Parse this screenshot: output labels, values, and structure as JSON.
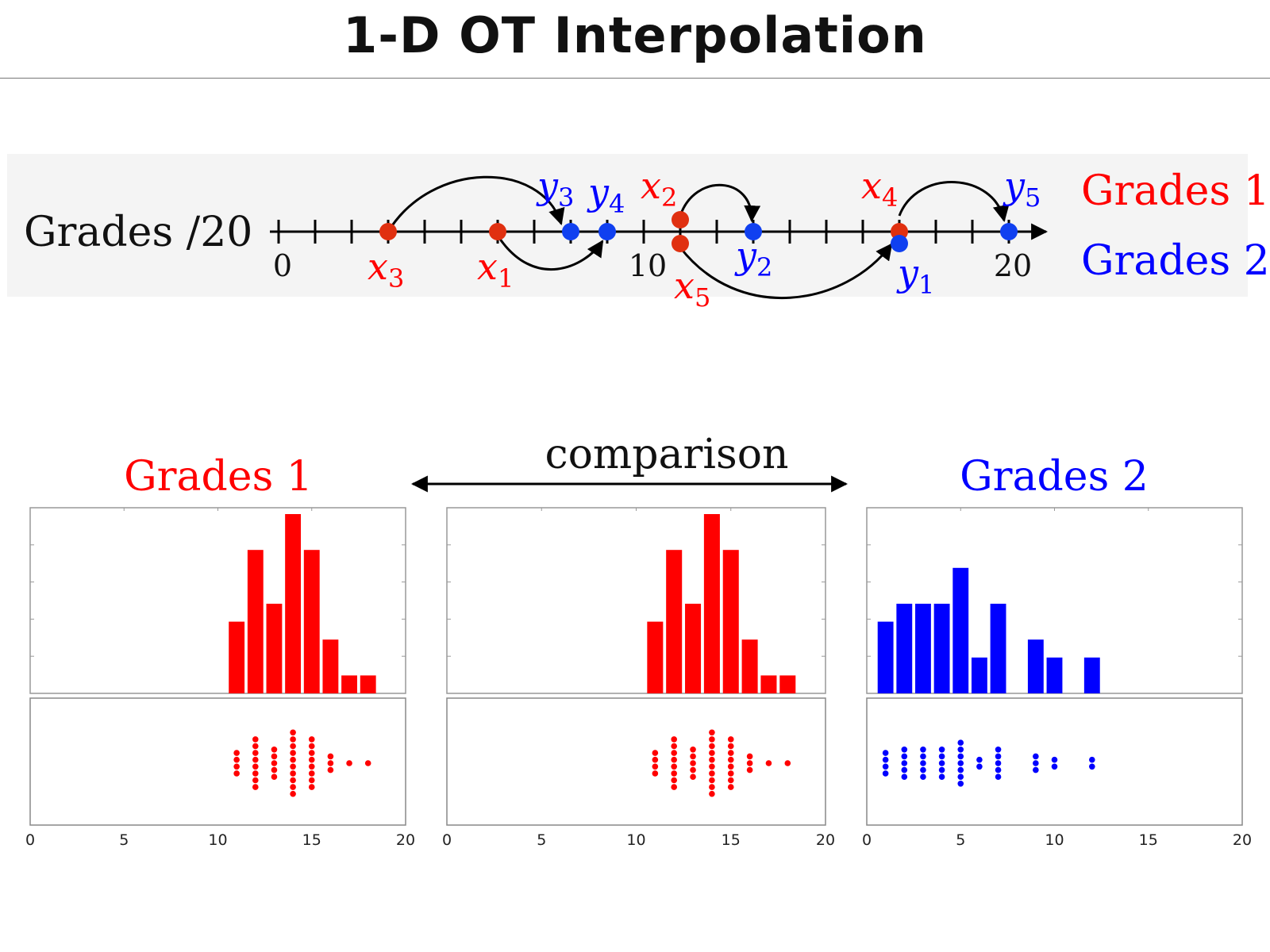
{
  "title": "1-D OT Interpolation",
  "numberline": {
    "axis_label": "Grades /20",
    "tick_labels": [
      "0",
      "10",
      "20"
    ],
    "legend": {
      "grades1": "Grades 1",
      "grades2": "Grades 2"
    },
    "x_points": [
      {
        "label": "x",
        "sub": "1",
        "value": 6
      },
      {
        "label": "x",
        "sub": "2",
        "value": 11
      },
      {
        "label": "x",
        "sub": "3",
        "value": 3
      },
      {
        "label": "x",
        "sub": "4",
        "value": 17
      },
      {
        "label": "x",
        "sub": "5",
        "value": 11
      }
    ],
    "y_points": [
      {
        "label": "y",
        "sub": "1",
        "value": 17
      },
      {
        "label": "y",
        "sub": "2",
        "value": 13
      },
      {
        "label": "y",
        "sub": "3",
        "value": 8
      },
      {
        "label": "y",
        "sub": "4",
        "value": 9
      },
      {
        "label": "y",
        "sub": "5",
        "value": 20
      }
    ],
    "transport": [
      {
        "from": 3,
        "to": 8
      },
      {
        "from": 6,
        "to": 9
      },
      {
        "from": 11,
        "to": 13
      },
      {
        "from": 11,
        "to": 17
      },
      {
        "from": 17,
        "to": 20
      }
    ]
  },
  "panels": {
    "left_title": "Grades 1",
    "right_title": "Grades 2",
    "comparison_label": "comparison",
    "x_tick_labels": [
      "0",
      "5",
      "10",
      "15",
      "20"
    ]
  },
  "colors": {
    "grades1": "#ff0000",
    "grades2": "#0000ff",
    "xdot": "#e03010",
    "ydot": "#1040f0"
  },
  "chart_data": [
    {
      "type": "bar",
      "name": "Grades 1",
      "x": [
        11,
        12,
        13,
        14,
        15,
        16,
        17,
        18
      ],
      "values": [
        4,
        8,
        5,
        10,
        8,
        3,
        1,
        1
      ],
      "xlim": [
        0,
        20
      ]
    },
    {
      "type": "bar",
      "x": [
        11,
        12,
        13,
        14,
        15,
        16,
        17,
        18
      ],
      "values": [
        4,
        8,
        5,
        10,
        8,
        3,
        1,
        1
      ],
      "xlim": [
        0,
        20
      ]
    },
    {
      "type": "bar",
      "name": "Grades 2",
      "x": [
        1,
        2,
        3,
        4,
        5,
        6,
        7,
        9,
        10,
        12
      ],
      "values": [
        4,
        5,
        5,
        5,
        7,
        2,
        5,
        3,
        2,
        2
      ],
      "xlim": [
        0,
        20
      ]
    }
  ]
}
